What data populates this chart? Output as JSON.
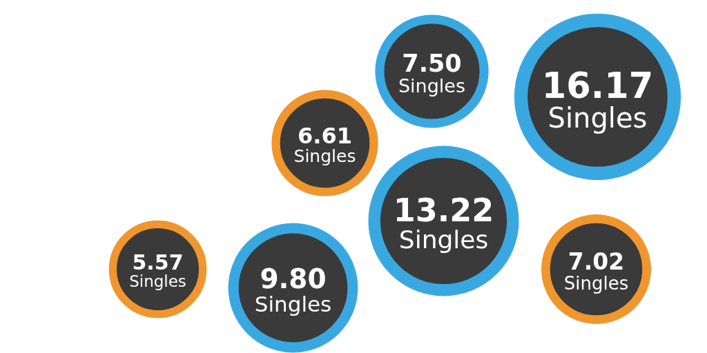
{
  "chart_data": {
    "type": "other",
    "categories": [
      "Singles",
      "Singles",
      "Singles",
      "Singles",
      "Singles",
      "Singles",
      "Singles"
    ],
    "values": [
      7.5,
      16.17,
      6.61,
      13.22,
      5.57,
      9.8,
      7.02
    ],
    "value_labels": [
      "7.50",
      "16.17",
      "6.61",
      "13.22",
      "5.57",
      "9.80",
      "7.02"
    ],
    "colors": [
      "#3aa8e0",
      "#3aa8e0",
      "#f0962e",
      "#3aa8e0",
      "#f0962e",
      "#3aa8e0",
      "#f0962e"
    ]
  }
}
